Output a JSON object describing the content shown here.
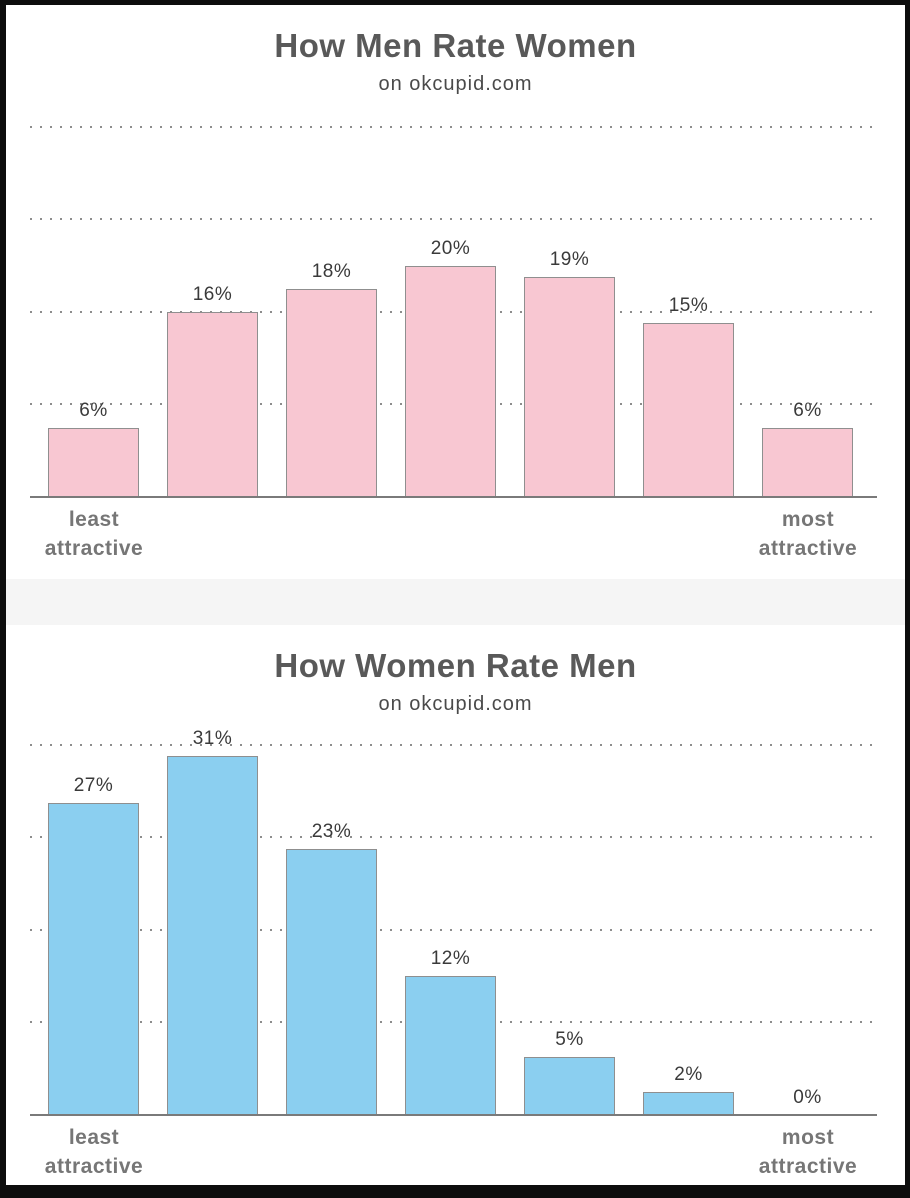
{
  "page": {
    "border_color": "#0d0d0d",
    "background": "#ffffff",
    "separator_color": "#f5f5f5"
  },
  "chart_data": [
    {
      "type": "bar",
      "title": "How Men Rate Women",
      "subtitle": "on okcupid.com",
      "values": [
        6,
        16,
        18,
        20,
        19,
        15,
        6
      ],
      "value_labels": [
        "6%",
        "16%",
        "18%",
        "20%",
        "19%",
        "15%",
        "6%"
      ],
      "x_axis_left_label": "least attractive",
      "x_axis_right_label": "most attractive",
      "ylim": [
        0,
        36
      ],
      "gridlines_pct": [
        8,
        16,
        24,
        32
      ],
      "grid_style": "dotted",
      "legend": "none",
      "bar_color": "#F8C7D2",
      "bar_border_color": "#8F8F8F"
    },
    {
      "type": "bar",
      "title": "How Women Rate Men",
      "subtitle": "on okcupid.com",
      "values": [
        27,
        31,
        23,
        12,
        5,
        2,
        0
      ],
      "value_labels": [
        "27%",
        "31%",
        "23%",
        "12%",
        "5%",
        "2%",
        "0%"
      ],
      "x_axis_left_label": "least attractive",
      "x_axis_right_label": "most attractive",
      "ylim": [
        0,
        36
      ],
      "gridlines_pct": [
        8,
        16,
        24,
        32
      ],
      "grid_style": "dotted",
      "legend": "none",
      "bar_color": "#8BCFF0",
      "bar_border_color": "#8F8F8F"
    }
  ]
}
